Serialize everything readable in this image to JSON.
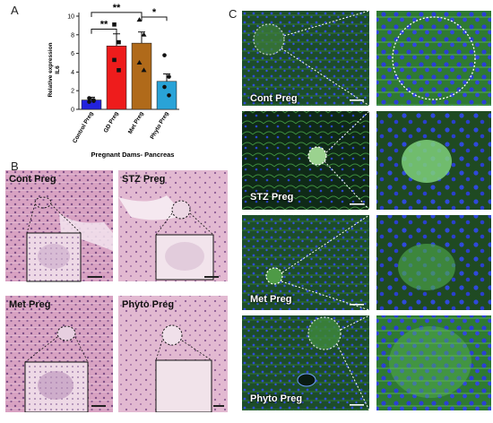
{
  "panels": {
    "a": "A",
    "b": "B",
    "c": "C"
  },
  "chart_data": {
    "type": "bar",
    "title": "",
    "xlabel": "Pregnant Dams- Pancreas",
    "ylabel": "Relative expression\nIL6",
    "ylabel_line1": "Relative expression",
    "ylabel_line2": "IL6",
    "ylim": [
      0,
      10
    ],
    "yticks": [
      0,
      2,
      4,
      6,
      8,
      10
    ],
    "categories": [
      "Control Preg",
      "GD Preg",
      "Met Preg",
      "Phyto Preg"
    ],
    "values": [
      1.0,
      6.8,
      7.1,
      3.0
    ],
    "errors": [
      0.3,
      1.3,
      1.2,
      0.8
    ],
    "bar_colors": [
      "#2222dd",
      "#ee1c1c",
      "#b06a1a",
      "#29a3d8"
    ],
    "points": [
      [
        0.8,
        1.0,
        1.2,
        0.9
      ],
      [
        9.1,
        7.2,
        5.3,
        4.2
      ],
      [
        9.6,
        8.0,
        5.0,
        4.2
      ],
      [
        5.8,
        3.5,
        2.4,
        1.5
      ]
    ],
    "significance": [
      {
        "from": 0,
        "to": 1,
        "label": "**"
      },
      {
        "from": 0,
        "to": 2,
        "label": "**"
      },
      {
        "from": 2,
        "to": 3,
        "label": "*"
      }
    ],
    "grid": false,
    "legend": "none"
  },
  "he_panel": {
    "labels": [
      "Cont Preg",
      "STZ Preg",
      "Met Preg",
      "Phyto Preg"
    ]
  },
  "if_panel": {
    "labels": [
      "Cont Preg",
      "STZ Preg",
      "Met Preg",
      "Phyto Preg"
    ]
  },
  "colors": {
    "he_pink": "#d9a9c6",
    "he_light": "#ead3e0",
    "if_green": "#2f6b2f",
    "if_blue": "#2a3fc8",
    "dotted_line": "#ffffff"
  }
}
